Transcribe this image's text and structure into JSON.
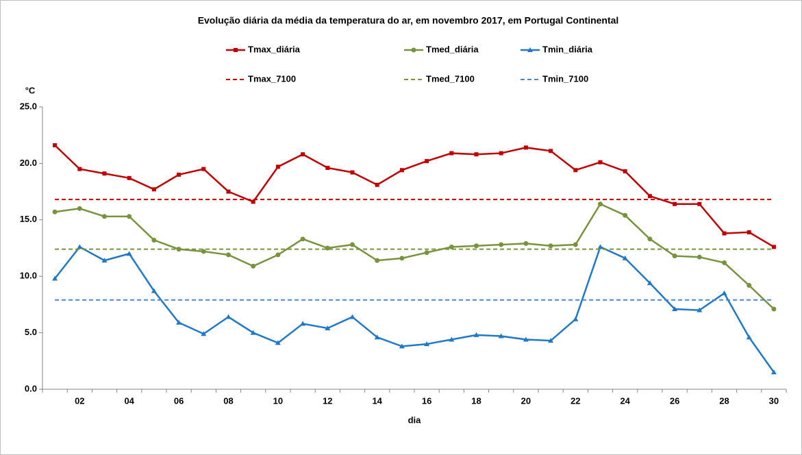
{
  "chart_data": {
    "type": "line",
    "title": "Evolução diária da média da temperatura do ar, em novembro 2017, em Portugal Continental",
    "y_label": "°C",
    "x_label": "dia",
    "categories": [
      null,
      "02",
      null,
      "04",
      null,
      "06",
      null,
      "08",
      null,
      "10",
      null,
      "12",
      null,
      "14",
      null,
      "16",
      null,
      "18",
      null,
      "20",
      null,
      "22",
      null,
      "24",
      null,
      "26",
      null,
      "28",
      null,
      "30"
    ],
    "ylim": [
      0,
      25
    ],
    "yticks": [
      {
        "value": 0,
        "label": "0.0"
      },
      {
        "value": 5,
        "label": "5.0"
      },
      {
        "value": 10,
        "label": "10.0"
      },
      {
        "value": 15,
        "label": "15.0"
      },
      {
        "value": 20,
        "label": "20.0"
      },
      {
        "value": 25,
        "label": "25.0"
      }
    ],
    "grid": false,
    "series": [
      {
        "name": "Tmax_diária",
        "color": "#c00000",
        "marker": "square",
        "dashed": false,
        "values": [
          21.6,
          19.5,
          19.1,
          18.7,
          17.7,
          19.0,
          19.5,
          17.5,
          16.6,
          19.7,
          20.8,
          19.6,
          19.2,
          18.1,
          19.4,
          20.2,
          20.9,
          20.8,
          20.9,
          21.4,
          21.1,
          19.4,
          20.1,
          19.3,
          17.1,
          16.4,
          16.4,
          13.8,
          13.9,
          12.6
        ]
      },
      {
        "name": "Tmed_diária",
        "color": "#77933c",
        "marker": "circle",
        "dashed": false,
        "values": [
          15.7,
          16.0,
          15.3,
          15.3,
          13.2,
          12.4,
          12.2,
          11.9,
          10.9,
          11.9,
          13.3,
          12.5,
          12.8,
          11.4,
          11.6,
          12.1,
          12.6,
          12.7,
          12.8,
          12.9,
          12.7,
          12.8,
          16.4,
          15.4,
          13.3,
          11.8,
          11.7,
          11.2,
          9.2,
          7.1
        ]
      },
      {
        "name": "Tmin_diária",
        "color": "#1f78c8",
        "marker": "triangle",
        "dashed": false,
        "values": [
          9.8,
          12.6,
          11.4,
          12.0,
          8.7,
          5.9,
          4.9,
          6.4,
          5.0,
          4.1,
          5.8,
          5.4,
          6.4,
          4.6,
          3.8,
          4.0,
          4.4,
          4.8,
          4.7,
          4.4,
          4.3,
          6.2,
          12.6,
          11.6,
          9.4,
          7.1,
          7.0,
          8.5,
          4.6,
          1.5
        ]
      },
      {
        "name": "Tmax_7100",
        "color": "#c00000",
        "marker": null,
        "dashed": true,
        "values": [
          16.8,
          16.8,
          16.8,
          16.8,
          16.8,
          16.8,
          16.8,
          16.8,
          16.8,
          16.8,
          16.8,
          16.8,
          16.8,
          16.8,
          16.8,
          16.8,
          16.8,
          16.8,
          16.8,
          16.8,
          16.8,
          16.8,
          16.8,
          16.8,
          16.8,
          16.8,
          16.8,
          16.8,
          16.8,
          16.8
        ]
      },
      {
        "name": "Tmed_7100",
        "color": "#77933c",
        "marker": null,
        "dashed": true,
        "values": [
          12.4,
          12.4,
          12.4,
          12.4,
          12.4,
          12.4,
          12.4,
          12.4,
          12.4,
          12.4,
          12.4,
          12.4,
          12.4,
          12.4,
          12.4,
          12.4,
          12.4,
          12.4,
          12.4,
          12.4,
          12.4,
          12.4,
          12.4,
          12.4,
          12.4,
          12.4,
          12.4,
          12.4,
          12.4,
          12.4
        ]
      },
      {
        "name": "Tmin_7100",
        "color": "#4a86d6",
        "marker": null,
        "dashed": true,
        "values": [
          7.9,
          7.9,
          7.9,
          7.9,
          7.9,
          7.9,
          7.9,
          7.9,
          7.9,
          7.9,
          7.9,
          7.9,
          7.9,
          7.9,
          7.9,
          7.9,
          7.9,
          7.9,
          7.9,
          7.9,
          7.9,
          7.9,
          7.9,
          7.9,
          7.9,
          7.9,
          7.9,
          7.9,
          7.9,
          7.9
        ]
      }
    ]
  }
}
